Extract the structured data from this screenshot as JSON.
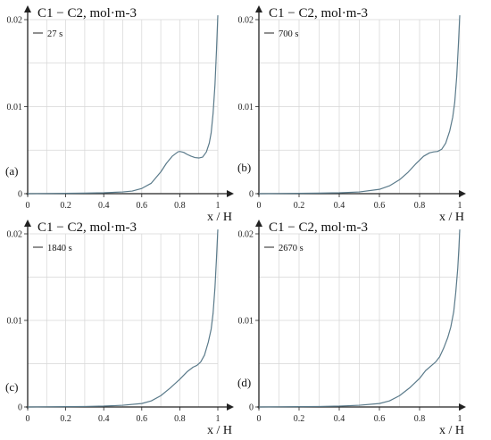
{
  "colors": {
    "curve": "#5a7a8a",
    "grid": "#d6d6d6",
    "axis": "#222222"
  },
  "chart_data": [
    {
      "type": "line",
      "panel": "(a)",
      "ylabel": "C1 − C2, mol·m-3",
      "xlabel": "x / H",
      "legend": "27 s",
      "xlim": [
        0,
        1
      ],
      "ylim": [
        0,
        0.02
      ],
      "xticks": [
        "0",
        "0.2",
        "0.4",
        "0.6",
        "0.8",
        "1"
      ],
      "yticks": [
        "0",
        "0.01",
        "0.02"
      ],
      "series": [
        {
          "name": "27 s",
          "x": [
            0,
            0.1,
            0.2,
            0.3,
            0.4,
            0.5,
            0.55,
            0.6,
            0.65,
            0.7,
            0.73,
            0.76,
            0.79,
            0.8,
            0.82,
            0.84,
            0.86,
            0.88,
            0.9,
            0.92,
            0.94,
            0.955,
            0.965,
            0.975,
            0.985,
            0.993,
            1.0
          ],
          "y": [
            0,
            2e-05,
            4e-05,
            6e-05,
            0.0001,
            0.0002,
            0.0003,
            0.0006,
            0.0012,
            0.0025,
            0.0035,
            0.0043,
            0.0048,
            0.00485,
            0.00475,
            0.0045,
            0.0043,
            0.00415,
            0.0041,
            0.0042,
            0.0048,
            0.0058,
            0.007,
            0.0092,
            0.0125,
            0.0165,
            0.0205
          ]
        }
      ]
    },
    {
      "type": "line",
      "panel": "(b)",
      "ylabel": "C1 − C2, mol·m-3",
      "xlabel": "x / H",
      "legend": "700 s",
      "xlim": [
        0,
        1
      ],
      "ylim": [
        0,
        0.02
      ],
      "xticks": [
        "0",
        "0.2",
        "0.4",
        "0.6",
        "0.8",
        "1"
      ],
      "yticks": [
        "0",
        "0.01",
        "0.02"
      ],
      "series": [
        {
          "name": "700 s",
          "x": [
            0,
            0.1,
            0.2,
            0.3,
            0.4,
            0.5,
            0.6,
            0.65,
            0.7,
            0.74,
            0.78,
            0.82,
            0.85,
            0.87,
            0.89,
            0.91,
            0.93,
            0.95,
            0.965,
            0.975,
            0.985,
            0.993,
            1.0
          ],
          "y": [
            0,
            2e-05,
            4e-05,
            6e-05,
            0.0001,
            0.0002,
            0.0005,
            0.0009,
            0.0016,
            0.0024,
            0.0034,
            0.0043,
            0.0047,
            0.0048,
            0.00485,
            0.0051,
            0.0058,
            0.0072,
            0.0088,
            0.0105,
            0.0135,
            0.017,
            0.0205
          ]
        }
      ]
    },
    {
      "type": "line",
      "panel": "(c)",
      "ylabel": "C1 − C2, mol·m-3",
      "xlabel": "x / H",
      "legend": "1840 s",
      "xlim": [
        0,
        1
      ],
      "ylim": [
        0,
        0.02
      ],
      "xticks": [
        "0",
        "0.2",
        "0.4",
        "0.6",
        "0.8",
        "1"
      ],
      "yticks": [
        "0",
        "0.01",
        "0.02"
      ],
      "series": [
        {
          "name": "1840 s",
          "x": [
            0,
            0.1,
            0.2,
            0.3,
            0.4,
            0.5,
            0.6,
            0.65,
            0.7,
            0.75,
            0.8,
            0.84,
            0.87,
            0.89,
            0.91,
            0.93,
            0.95,
            0.965,
            0.975,
            0.985,
            0.993,
            1.0
          ],
          "y": [
            0,
            2e-05,
            4e-05,
            6e-05,
            0.0001,
            0.0002,
            0.0004,
            0.0007,
            0.0013,
            0.0022,
            0.0032,
            0.0041,
            0.0046,
            0.0048,
            0.0052,
            0.006,
            0.0075,
            0.009,
            0.0108,
            0.0138,
            0.0172,
            0.0205
          ]
        }
      ]
    },
    {
      "type": "line",
      "panel": "(d)",
      "ylabel": "C1 − C2, mol·m-3",
      "xlabel": "x / H",
      "legend": "2670 s",
      "xlim": [
        0,
        1
      ],
      "ylim": [
        0,
        0.02
      ],
      "xticks": [
        "0",
        "0.2",
        "0.4",
        "0.6",
        "0.8",
        "1"
      ],
      "yticks": [
        "0",
        "0.01",
        "0.02"
      ],
      "series": [
        {
          "name": "2670 s",
          "x": [
            0,
            0.1,
            0.2,
            0.3,
            0.4,
            0.5,
            0.6,
            0.65,
            0.7,
            0.75,
            0.8,
            0.83,
            0.86,
            0.88,
            0.9,
            0.92,
            0.94,
            0.955,
            0.97,
            0.98,
            0.99,
            0.996,
            1.0
          ],
          "y": [
            0,
            2e-05,
            4e-05,
            6e-05,
            0.0001,
            0.0002,
            0.0004,
            0.0007,
            0.0013,
            0.0022,
            0.0033,
            0.0042,
            0.0048,
            0.0052,
            0.0058,
            0.0068,
            0.008,
            0.0092,
            0.011,
            0.0132,
            0.016,
            0.0185,
            0.0205
          ]
        }
      ]
    }
  ]
}
